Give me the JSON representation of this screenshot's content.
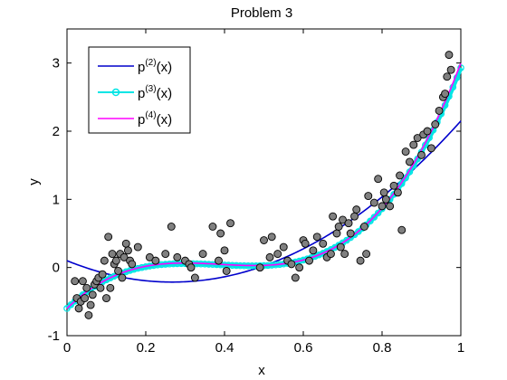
{
  "chart_data": {
    "type": "scatter",
    "title": "Problem 3",
    "xlabel": "x",
    "ylabel": "y",
    "xlim": [
      0,
      1
    ],
    "ylim": [
      -1,
      3.5
    ],
    "xticks": [
      0,
      0.2,
      0.4,
      0.6,
      0.8,
      1
    ],
    "xtick_labels": [
      "0",
      "0.2",
      "0.4",
      "0.6",
      "0.8",
      "1"
    ],
    "yticks": [
      -1,
      0,
      1,
      2,
      3
    ],
    "ytick_labels": [
      "-1",
      "0",
      "1",
      "2",
      "3"
    ],
    "grid": false,
    "legend_position": "top-left",
    "points": {
      "color": "#808080",
      "x": [
        0.02,
        0.025,
        0.03,
        0.035,
        0.04,
        0.045,
        0.05,
        0.055,
        0.06,
        0.065,
        0.07,
        0.075,
        0.08,
        0.085,
        0.09,
        0.095,
        0.1,
        0.105,
        0.11,
        0.115,
        0.12,
        0.125,
        0.13,
        0.135,
        0.14,
        0.145,
        0.15,
        0.155,
        0.16,
        0.165,
        0.18,
        0.21,
        0.225,
        0.25,
        0.265,
        0.28,
        0.3,
        0.31,
        0.315,
        0.325,
        0.345,
        0.37,
        0.385,
        0.39,
        0.4,
        0.405,
        0.415,
        0.49,
        0.5,
        0.515,
        0.52,
        0.535,
        0.55,
        0.56,
        0.57,
        0.58,
        0.59,
        0.6,
        0.605,
        0.615,
        0.625,
        0.635,
        0.65,
        0.66,
        0.67,
        0.675,
        0.685,
        0.69,
        0.695,
        0.7,
        0.705,
        0.715,
        0.72,
        0.73,
        0.735,
        0.745,
        0.755,
        0.76,
        0.765,
        0.78,
        0.79,
        0.8,
        0.805,
        0.81,
        0.82,
        0.83,
        0.84,
        0.845,
        0.85,
        0.86,
        0.87,
        0.88,
        0.89,
        0.9,
        0.905,
        0.915,
        0.925,
        0.935,
        0.945,
        0.955,
        0.96,
        0.965,
        0.97,
        0.975
      ],
      "y": [
        -0.2,
        -0.45,
        -0.6,
        -0.5,
        -0.2,
        -0.45,
        -0.3,
        -0.7,
        -0.55,
        -0.4,
        -0.25,
        -0.2,
        -0.15,
        -0.3,
        -0.1,
        0.1,
        -0.45,
        0.45,
        -0.3,
        0.2,
        0.05,
        0.1,
        -0.05,
        0.2,
        -0.15,
        0.15,
        0.35,
        0.25,
        0.1,
        0.05,
        0.3,
        0.15,
        0.1,
        0.2,
        0.6,
        0.15,
        0.1,
        0.05,
        0.0,
        -0.15,
        0.2,
        0.6,
        0.1,
        0.5,
        0.25,
        -0.05,
        0.65,
        0.0,
        0.4,
        0.15,
        0.45,
        0.2,
        0.3,
        0.1,
        0.05,
        -0.15,
        0.0,
        0.4,
        0.35,
        0.1,
        0.25,
        0.45,
        0.35,
        0.15,
        0.2,
        0.75,
        0.5,
        0.6,
        0.3,
        0.7,
        0.2,
        0.65,
        0.5,
        0.75,
        0.85,
        0.1,
        0.6,
        0.2,
        1.05,
        0.95,
        1.3,
        0.9,
        1.1,
        1.0,
        0.9,
        1.2,
        1.1,
        1.35,
        0.55,
        1.7,
        1.55,
        1.8,
        1.9,
        1.65,
        1.95,
        2.0,
        1.75,
        2.1,
        2.3,
        2.5,
        2.55,
        2.8,
        3.12,
        2.9
      ]
    },
    "series": [
      {
        "name": "p(2)(x)",
        "label_base": "p",
        "label_sup": "(2)",
        "label_arg": "(x)",
        "color": "#0000cc",
        "degree": 2,
        "coefficients": [
          0.1,
          -2.35,
          4.4
        ]
      },
      {
        "name": "p(3)(x)",
        "label_base": "p",
        "label_sup": "(3)",
        "label_arg": "(x)",
        "color": "#00e5e5",
        "marker": "circle",
        "degree": 3,
        "coefficients": [
          -0.6,
          5.58,
          -15.25,
          13.2
        ]
      },
      {
        "name": "p(4)(x)",
        "label_base": "p",
        "label_sup": "(4)",
        "label_arg": "(x)",
        "color": "#ff00ff",
        "degree": 4,
        "coefficients": [
          -0.6,
          5.6,
          -15.1,
          12.6,
          0.5
        ]
      }
    ]
  }
}
